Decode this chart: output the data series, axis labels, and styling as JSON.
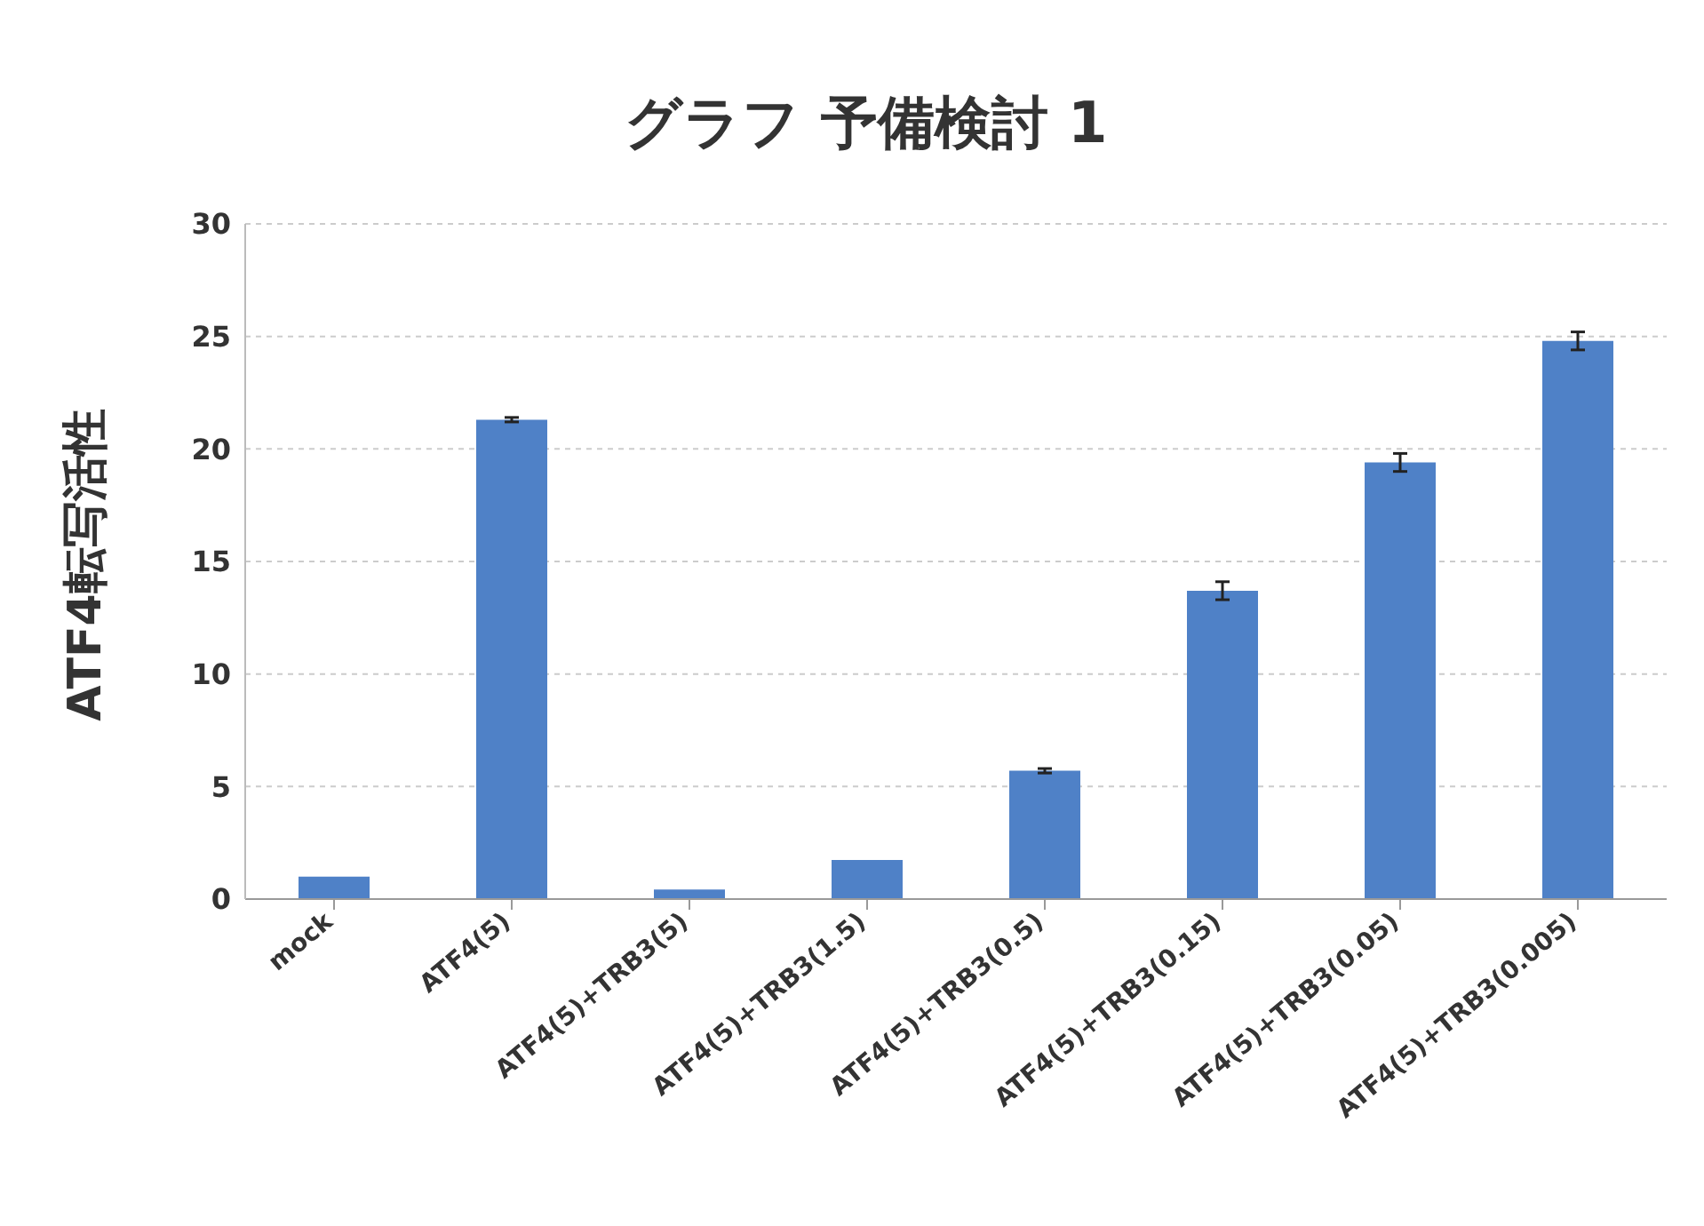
{
  "chart_data": {
    "type": "bar",
    "title": "グラフ 予備検討 1",
    "ylabel": "ATF4転写活性",
    "categories": [
      "mock",
      "ATF4(5)",
      "ATF4(5)+TRB3(5)",
      "ATF4(5)+TRB3(1.5)",
      "ATF4(5)+TRB3(0.5)",
      "ATF4(5)+TRB3(0.15)",
      "ATF4(5)+TRB3(0.05)",
      "ATF4(5)+TRB3(0.005)"
    ],
    "values": [
      1.0,
      21.3,
      0.42,
      1.74,
      5.7,
      13.7,
      19.4,
      24.8
    ],
    "errors": [
      null,
      0.1,
      null,
      null,
      0.1,
      0.4,
      0.4,
      0.4
    ],
    "color": "#4f81c7",
    "ylim": [
      0,
      30
    ],
    "yticks": [
      0,
      5,
      10,
      15,
      20,
      25,
      30
    ],
    "grid": "y"
  }
}
